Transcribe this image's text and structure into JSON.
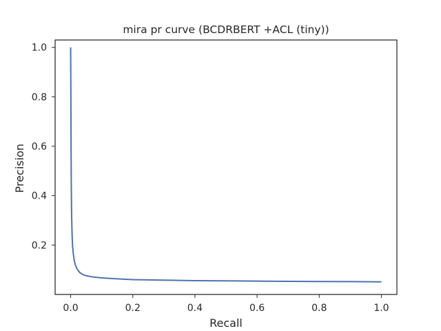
{
  "chart_data": {
    "type": "line",
    "title": "mira pr curve (BCDRBERT +ACL (tiny))",
    "xlabel": "Recall",
    "ylabel": "Precision",
    "xlim": [
      -0.05,
      1.05
    ],
    "ylim": [
      0.0,
      1.03
    ],
    "xticks": [
      0.0,
      0.2,
      0.4,
      0.6,
      0.8,
      1.0
    ],
    "yticks": [
      0.2,
      0.4,
      0.6,
      0.8,
      1.0
    ],
    "grid": false,
    "legend": "none",
    "series": [
      {
        "color": "#4c72b0",
        "x": [
          0.0,
          0.0005,
          0.001,
          0.0015,
          0.002,
          0.003,
          0.004,
          0.005,
          0.006,
          0.008,
          0.01,
          0.012,
          0.015,
          0.02,
          0.025,
          0.03,
          0.04,
          0.05,
          0.07,
          0.1,
          0.15,
          0.2,
          0.3,
          0.4,
          0.5,
          0.6,
          0.7,
          0.8,
          0.9,
          1.0
        ],
        "y": [
          1.0,
          0.87,
          0.7,
          0.55,
          0.44,
          0.33,
          0.27,
          0.23,
          0.2,
          0.17,
          0.15,
          0.135,
          0.12,
          0.105,
          0.095,
          0.088,
          0.08,
          0.076,
          0.071,
          0.067,
          0.063,
          0.06,
          0.058,
          0.056,
          0.055,
          0.054,
          0.053,
          0.0525,
          0.052,
          0.051
        ]
      }
    ]
  }
}
